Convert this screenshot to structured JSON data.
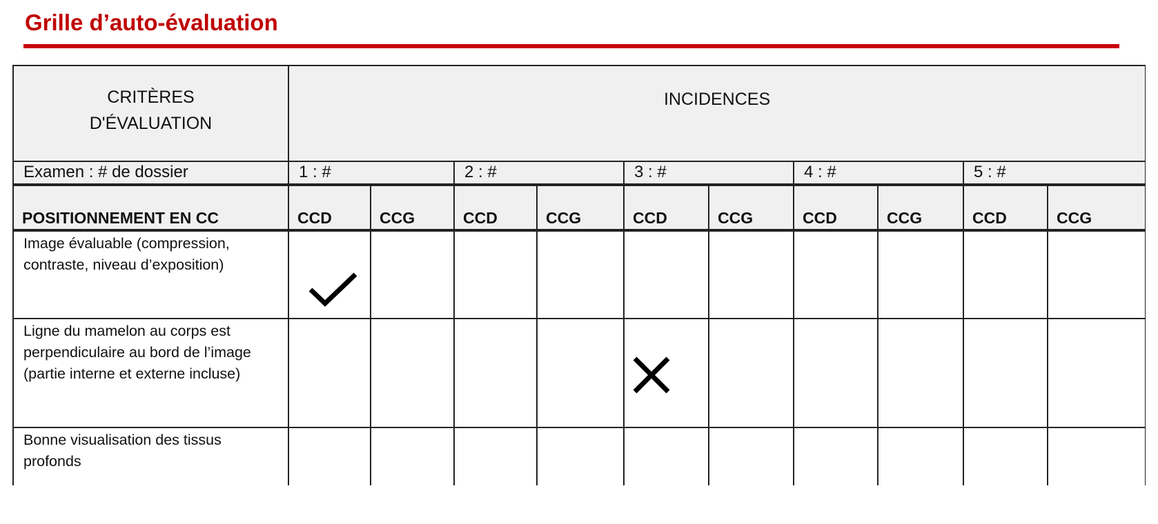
{
  "title": "Grille d’auto-évaluation",
  "accent_color": "#c00000",
  "header": {
    "criteria": "CRITÈRES D'ÉVALUATION",
    "incidences": "INCIDENCES"
  },
  "exam_row": {
    "label": "Examen : # de dossier",
    "exams": [
      "1 : #",
      "2 : #",
      "3 : #",
      "4 :  #",
      "5 : #"
    ]
  },
  "positioning_row": {
    "label": "POSITIONNEMENT EN CC",
    "views": [
      "CCD",
      "CCG",
      "CCD",
      "CCG",
      "CCD",
      "CCG",
      "CCD",
      "CCG",
      "CCD",
      "CCG"
    ]
  },
  "criteria_rows": [
    {
      "label": "Image évaluable (compression, contraste, niveau d’exposition)",
      "marks": [
        "check",
        "",
        "",
        "",
        "",
        "",
        "",
        "",
        "",
        ""
      ]
    },
    {
      "label": "Ligne du mamelon au corps est perpendiculaire au bord de l’image (partie interne et externe incluse)",
      "marks": [
        "",
        "",
        "",
        "",
        "cross",
        "",
        "",
        "",
        "",
        ""
      ]
    },
    {
      "label": "Bonne visualisation des tissus profonds",
      "marks": [
        "",
        "",
        "",
        "",
        "",
        "",
        "",
        "",
        "",
        ""
      ]
    }
  ]
}
